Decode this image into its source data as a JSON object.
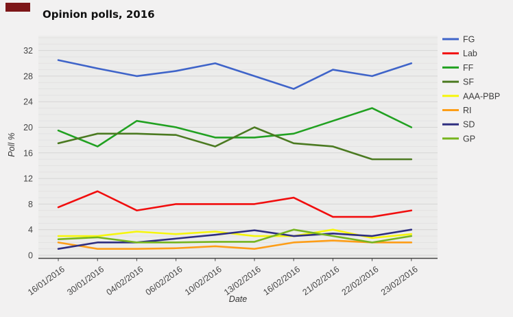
{
  "title": "Opinion polls, 2016",
  "colors": {
    "page_bg": "#f2f1f1",
    "plot_bg": "#ececeb",
    "grid_minor": "#e3e2e2",
    "grid_major": "#d6d5d5",
    "axis_line": "#424242",
    "tick_text": "#454545",
    "legend_text": "#3c3c3c",
    "corner_marker": "#7d1618"
  },
  "chart_data": {
    "type": "line",
    "title": "Opinion polls, 2016",
    "xlabel": "Date",
    "ylabel": "Poll %",
    "categories": [
      "16/01/2016",
      "30/01/2016",
      "04/02/2016",
      "06/02/2016",
      "10/02/2016",
      "13/02/2016",
      "16/02/2016",
      "21/02/2016",
      "22/02/2016",
      "23/02/2016"
    ],
    "y_ticks": [
      0,
      4,
      8,
      12,
      16,
      20,
      24,
      28,
      32
    ],
    "ylim": [
      0,
      34
    ],
    "grid": "horizontal, minor every 1, major every 4",
    "legend_position": "right",
    "series": [
      {
        "name": "FG",
        "color": "#3f64c9",
        "values": [
          30.5,
          29.2,
          28,
          28.8,
          30,
          28,
          26,
          29,
          28,
          30
        ]
      },
      {
        "name": "Lab",
        "color": "#f10e0e",
        "values": [
          7.5,
          10,
          7,
          8,
          8,
          8,
          9,
          6,
          6,
          7
        ]
      },
      {
        "name": "FF",
        "color": "#21a121",
        "values": [
          19.5,
          17,
          21,
          20,
          18.4,
          18.4,
          19,
          21,
          23,
          20
        ]
      },
      {
        "name": "SF",
        "color": "#4b7a21",
        "values": [
          17.5,
          19,
          19,
          18.8,
          17,
          20,
          17.5,
          17,
          15,
          15
        ]
      },
      {
        "name": "AAA-PBP",
        "color": "#f6f60c",
        "values": [
          3,
          3,
          3.7,
          3.3,
          3.7,
          3,
          3,
          4,
          2.7,
          3.3
        ]
      },
      {
        "name": "RI",
        "color": "#fd9d17",
        "values": [
          2,
          1,
          1,
          1.1,
          1.4,
          1,
          2,
          2.3,
          2,
          2
        ]
      },
      {
        "name": "SD",
        "color": "#2e2e80",
        "values": [
          1,
          2,
          2,
          2.6,
          3.2,
          3.9,
          3,
          3.4,
          3,
          4
        ]
      },
      {
        "name": "GP",
        "color": "#76b41e",
        "values": [
          2.5,
          2.8,
          2,
          2,
          2.1,
          2.1,
          4,
          3,
          2,
          3
        ]
      }
    ]
  }
}
